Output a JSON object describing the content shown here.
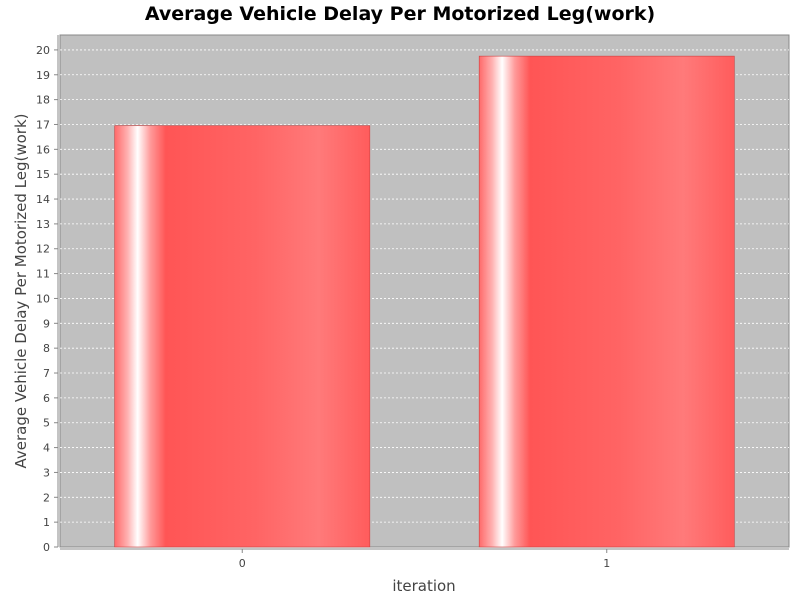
{
  "chart_data": {
    "type": "bar",
    "title": "Average Vehicle Delay Per Motorized Leg(work)",
    "xlabel": "iteration",
    "ylabel": "Average Vehicle Delay Per Motorized Leg(work)",
    "categories": [
      "0",
      "1"
    ],
    "values": [
      16.95,
      19.75
    ],
    "ylim": [
      0,
      20.6
    ],
    "yticks": [
      0,
      1,
      2,
      3,
      4,
      5,
      6,
      7,
      8,
      9,
      10,
      11,
      12,
      13,
      14,
      15,
      16,
      17,
      18,
      19,
      20
    ],
    "grid": true,
    "legend": "none",
    "plot_background": "#c0c0c0",
    "bar_color": "#ff5555",
    "gridline_color": "#ffffff"
  }
}
